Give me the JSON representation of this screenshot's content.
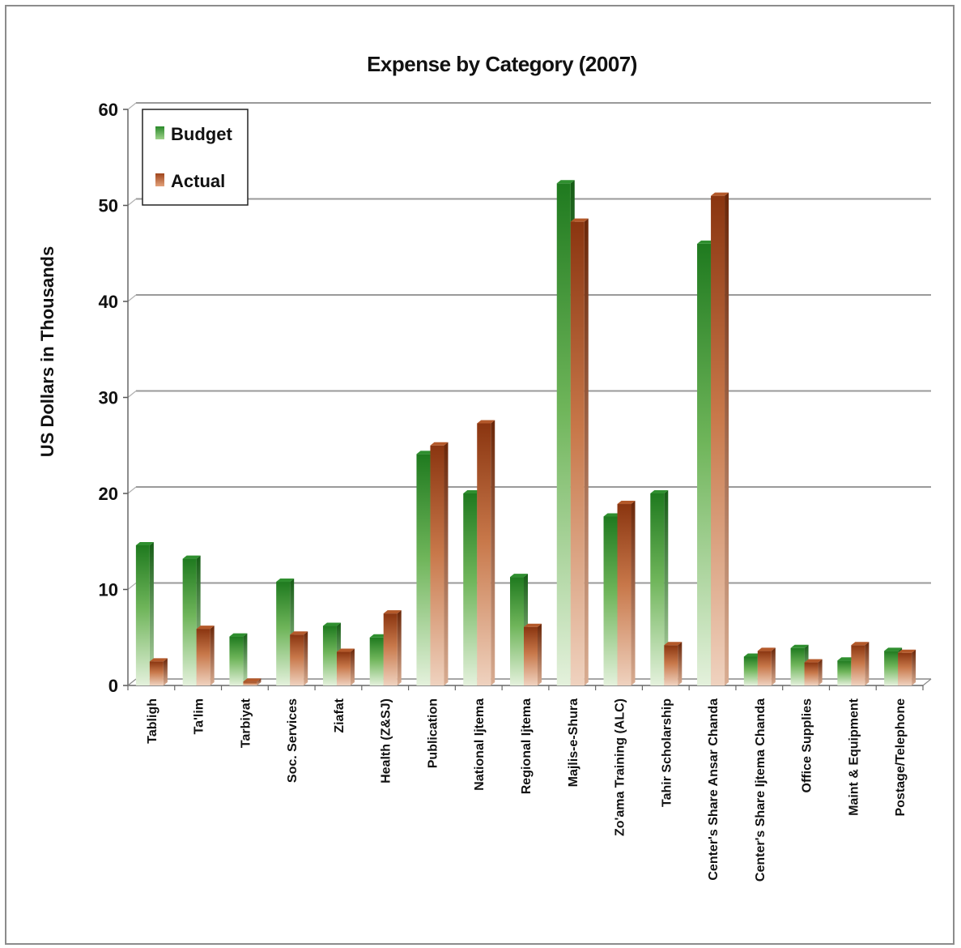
{
  "chart_data": {
    "type": "bar",
    "title": "Expense by Category (2007)",
    "xlabel": "",
    "ylabel": "US Dollars in Thousands",
    "ylim": [
      0,
      60
    ],
    "yticks": [
      0,
      10,
      20,
      30,
      40,
      50,
      60
    ],
    "grid": true,
    "legend_position": "top-left",
    "categories": [
      "Tabligh",
      "Ta'lim",
      "Tarbiyat",
      "Soc. Services",
      "Ziafat",
      "Health (Z&SJ)",
      "Publication",
      "National Ijtema",
      "Regional Ijtema",
      "Majlis-e-Shura",
      "Zo'ama Training (ALC)",
      "Tahir Scholarship",
      "Center's Share Ansar Chanda",
      "Center's Share Ijtema Chanda",
      "Office Supplies",
      "Maint & Equipment",
      "Postage/Telephone"
    ],
    "series": [
      {
        "name": "Budget",
        "color": "#2e8b2e",
        "values": [
          14.6,
          13.2,
          5.1,
          10.8,
          6.2,
          5.0,
          24.1,
          20.0,
          11.3,
          52.3,
          17.6,
          20.0,
          46.0,
          3.0,
          3.9,
          2.6,
          3.6
        ]
      },
      {
        "name": "Actual",
        "color": "#a0451c",
        "values": [
          2.5,
          5.9,
          0.4,
          5.3,
          3.5,
          7.5,
          25.0,
          27.3,
          6.1,
          48.3,
          18.9,
          4.2,
          51.0,
          3.6,
          2.4,
          4.2,
          3.4
        ]
      }
    ]
  }
}
